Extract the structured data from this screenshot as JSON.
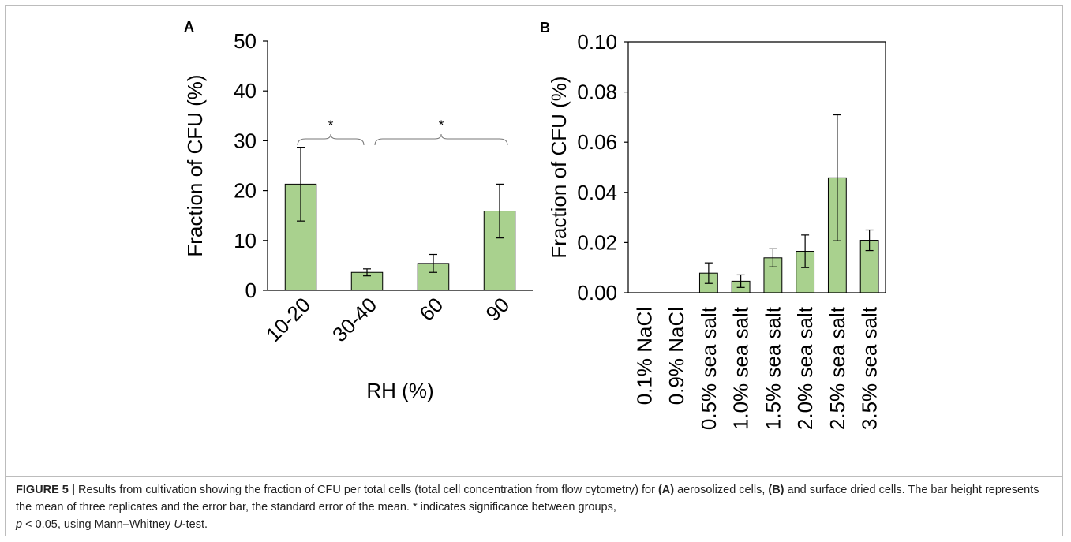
{
  "colors": {
    "bar_fill": "#a9d18e",
    "bar_stroke": "#000000",
    "axis": "#000000",
    "bracket": "#777777"
  },
  "chart_data": [
    {
      "panel": "A",
      "type": "bar",
      "xlabel": "RH (%)",
      "ylabel": "Fraction of CFU (%)",
      "categories": [
        "10-20",
        "30-40",
        "60",
        "90"
      ],
      "values": [
        21.3,
        3.6,
        5.4,
        15.9
      ],
      "errors": [
        7.4,
        0.7,
        1.8,
        5.4
      ],
      "ylim": [
        0,
        50
      ],
      "yticks": [
        "0",
        "10",
        "20",
        "30",
        "40",
        "50"
      ],
      "annotations": [
        {
          "text": "*",
          "from": "10-20",
          "to": "30-40"
        },
        {
          "text": "*",
          "from": "30-40",
          "to": "90"
        }
      ],
      "grid": false
    },
    {
      "panel": "B",
      "type": "bar",
      "xlabel": "",
      "ylabel": "Fraction of CFU (%)",
      "categories": [
        "0.1% NaCl",
        "0.9% NaCl",
        "0.5% sea salt",
        "1.0% sea salt",
        "1.5% sea salt",
        "2.0% sea salt",
        "2.5% sea salt",
        "3.5% sea salt"
      ],
      "values": [
        0,
        0,
        0.0078,
        0.0046,
        0.0139,
        0.0165,
        0.0458,
        0.0209
      ],
      "errors": [
        0,
        0,
        0.0041,
        0.0025,
        0.0036,
        0.0065,
        0.0251,
        0.0041
      ],
      "ylim": [
        0,
        0.1
      ],
      "yticks": [
        "0.00",
        "0.02",
        "0.04",
        "0.06",
        "0.08",
        "0.10"
      ],
      "grid": false
    }
  ],
  "caption": {
    "label": "FIGURE 5 |",
    "t1": " Results from cultivation showing the fraction of CFU per total cells (total cell concentration from flow cytometry) for ",
    "a": "(A)",
    "t2": " aerosolized cells, ",
    "b": "(B)",
    "t3": " and surface dried cells. The bar height represents the mean of three replicates and the error bar, the standard error of the mean. * indicates significance between groups,",
    "p": "p",
    "t4": " < 0.05, using Mann–Whitney ",
    "u": "U",
    "t5": "-test."
  }
}
